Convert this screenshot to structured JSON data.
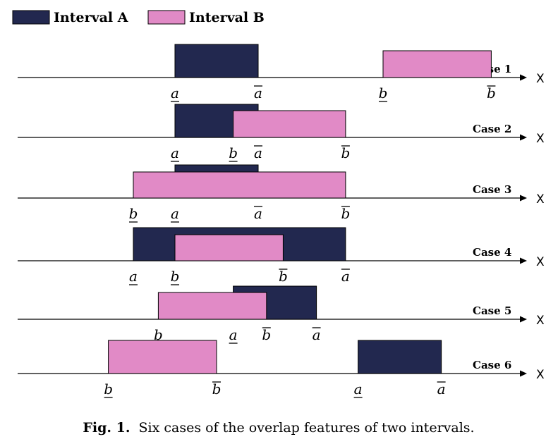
{
  "legend": {
    "interval_a": {
      "label": "Interval A",
      "color": "#22284f"
    },
    "interval_b": {
      "label": "Interval B",
      "color": "#e18ac6"
    }
  },
  "axis_label": "X",
  "cases": [
    {
      "label": "Case 1",
      "a": [
        0,
        1.0
      ],
      "b": [
        2.5,
        3.8
      ],
      "labels": [
        {
          "text": "a",
          "bar": "under",
          "x": 0
        },
        {
          "text": "a",
          "bar": "over",
          "x": 1.0
        },
        {
          "text": "b",
          "bar": "under",
          "x": 2.5
        },
        {
          "text": "b",
          "bar": "over",
          "x": 3.8
        }
      ]
    },
    {
      "label": "Case 2",
      "a": [
        0,
        1.0
      ],
      "b": [
        0.7,
        2.05
      ],
      "labels": [
        {
          "text": "a",
          "bar": "under",
          "x": 0
        },
        {
          "text": "b",
          "bar": "under",
          "x": 0.7
        },
        {
          "text": "a",
          "bar": "over",
          "x": 1.0
        },
        {
          "text": "b",
          "bar": "over",
          "x": 2.05
        }
      ]
    },
    {
      "label": "Case 3",
      "a": [
        0,
        1.0
      ],
      "b": [
        -0.5,
        2.05
      ],
      "labels": [
        {
          "text": "b",
          "bar": "under",
          "x": -0.5
        },
        {
          "text": "a",
          "bar": "under",
          "x": 0
        },
        {
          "text": "a",
          "bar": "over",
          "x": 1.0
        },
        {
          "text": "b",
          "bar": "over",
          "x": 2.05
        }
      ]
    },
    {
      "label": "Case 4",
      "a": [
        -0.5,
        2.05
      ],
      "b": [
        0,
        1.3
      ],
      "labels": [
        {
          "text": "a",
          "bar": "under",
          "x": -0.5
        },
        {
          "text": "b",
          "bar": "under",
          "x": 0
        },
        {
          "text": "b",
          "bar": "over",
          "x": 1.3
        },
        {
          "text": "a",
          "bar": "over",
          "x": 2.05
        }
      ]
    },
    {
      "label": "Case 5",
      "a": [
        0.7,
        1.7
      ],
      "b": [
        -0.2,
        1.1
      ],
      "labels": [
        {
          "text": "b",
          "bar": "under",
          "x": -0.2
        },
        {
          "text": "a",
          "bar": "under",
          "x": 0.7
        },
        {
          "text": "b",
          "bar": "over",
          "x": 1.1
        },
        {
          "text": "a",
          "bar": "over",
          "x": 1.7
        }
      ]
    },
    {
      "label": "Case 6",
      "a": [
        2.2,
        3.2
      ],
      "b": [
        -0.8,
        0.5
      ],
      "labels": [
        {
          "text": "b",
          "bar": "under",
          "x": -0.8
        },
        {
          "text": "b",
          "bar": "over",
          "x": 0.5
        },
        {
          "text": "a",
          "bar": "under",
          "x": 2.2
        },
        {
          "text": "a",
          "bar": "over",
          "x": 3.2
        }
      ]
    }
  ],
  "caption": {
    "prefix": "Fig. 1.",
    "text": "Six cases of the overlap features of two intervals."
  }
}
